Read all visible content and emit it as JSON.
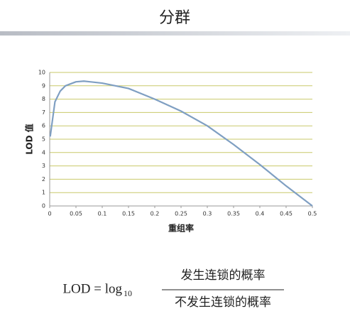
{
  "header": {
    "title": "分群"
  },
  "chart_data": {
    "type": "line",
    "x": [
      0.001,
      0.01,
      0.02,
      0.03,
      0.05,
      0.065,
      0.1,
      0.15,
      0.2,
      0.25,
      0.3,
      0.35,
      0.4,
      0.45,
      0.5
    ],
    "series": [
      {
        "color": "#7f9fc2",
        "values": [
          5.2,
          7.8,
          8.6,
          9.0,
          9.3,
          9.35,
          9.2,
          8.8,
          8.0,
          7.1,
          6.0,
          4.6,
          3.1,
          1.5,
          0
        ]
      }
    ],
    "xlim": [
      0,
      0.5
    ],
    "xticks": [
      0,
      0.05,
      0.1,
      0.15,
      0.2,
      0.25,
      0.3,
      0.35,
      0.4,
      0.45,
      0.5
    ],
    "ylim": [
      0,
      10
    ],
    "yticks": [
      0,
      1,
      2,
      3,
      4,
      5,
      6,
      7,
      8,
      9,
      10
    ],
    "grid": true,
    "grid_color": "#c9c96a",
    "x_label": "重组率",
    "y_label": "LOD 值"
  },
  "formula": {
    "lhs": "LOD = log",
    "subscript": "10",
    "numerator": "发生连锁的概率",
    "denominator": "不发生连锁的概率"
  }
}
